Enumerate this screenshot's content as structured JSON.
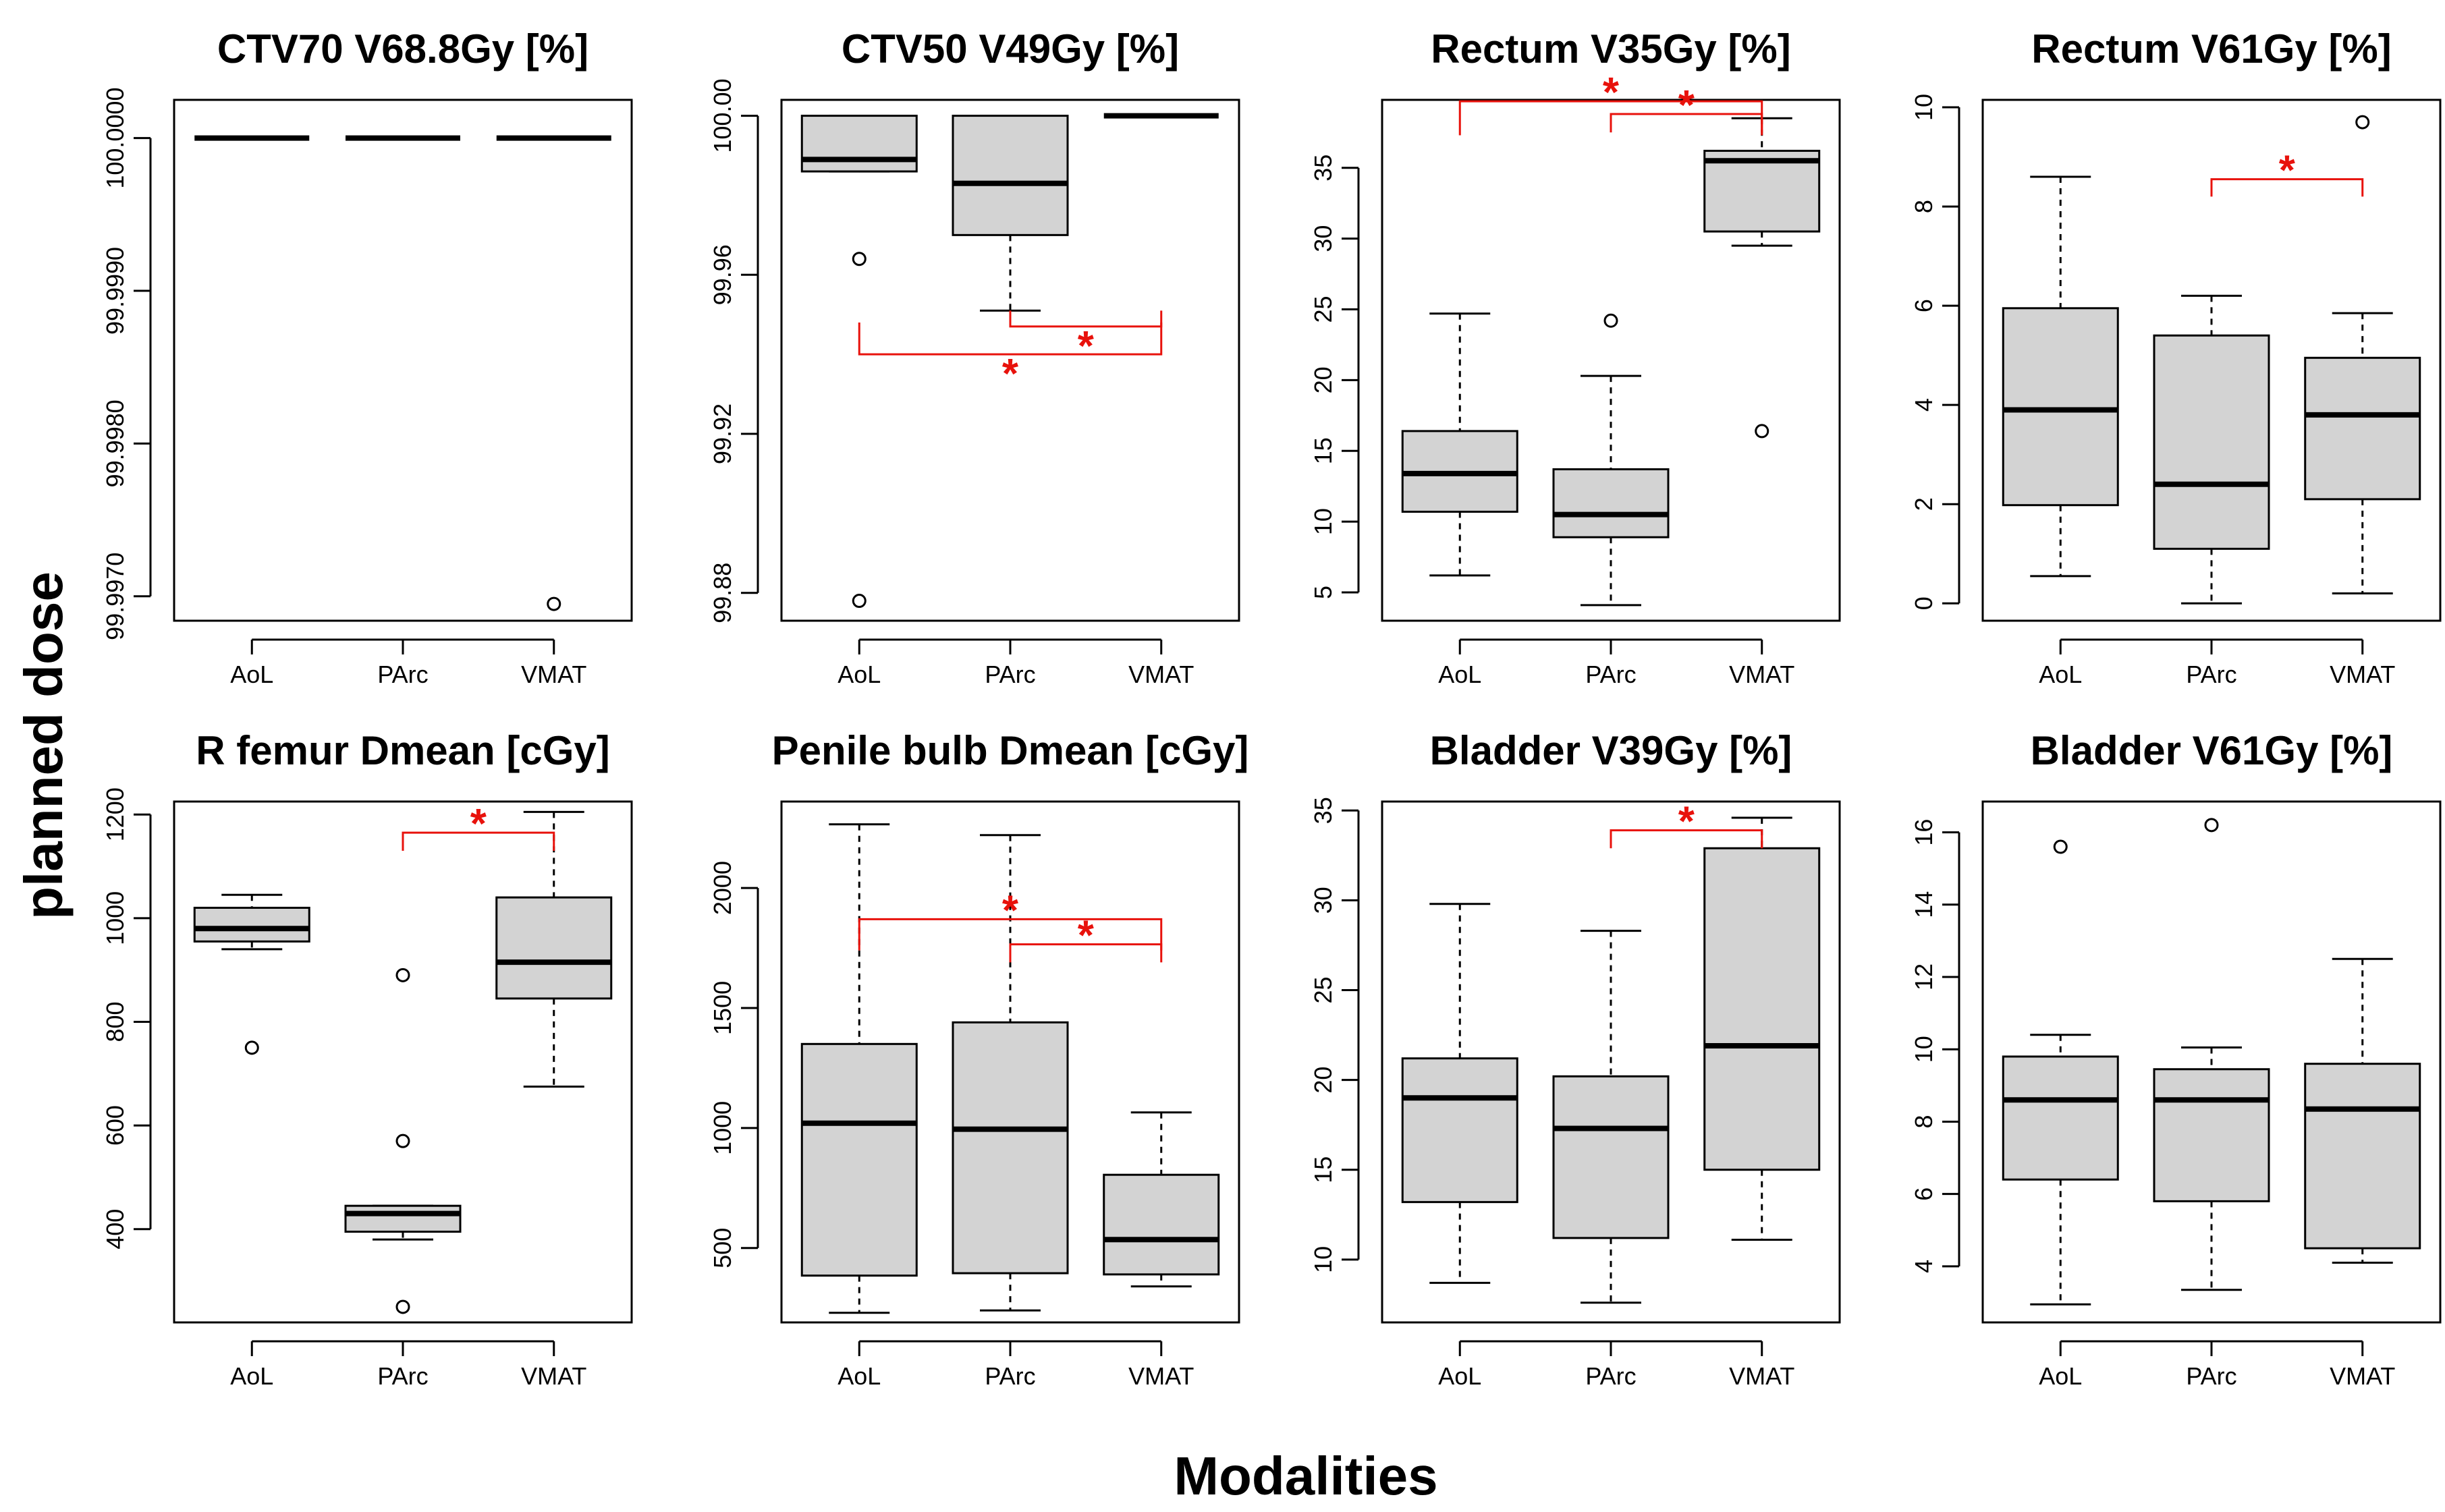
{
  "figure": {
    "ylabel": "planned dose",
    "xlabel": "Modalities"
  },
  "colors": {
    "box_fill": "#d3d3d3",
    "line": "#000000",
    "significance": "#e8120c"
  },
  "chart_data": [
    {
      "type": "boxplot",
      "title": "CTV70 V68.8Gy [%]",
      "categories": [
        "AoL",
        "PArc",
        "VMAT"
      ],
      "ylim": [
        99.99684,
        100.00025
      ],
      "yticks": [
        99.997,
        99.998,
        99.999,
        100.0
      ],
      "ytick_labels": [
        "99.9970",
        "99.9980",
        "99.9990",
        "100.0000"
      ],
      "boxes": [
        {
          "wlo": 100.0,
          "q1": 100.0,
          "med": 100.0,
          "q3": 100.0,
          "whi": 100.0,
          "out": []
        },
        {
          "wlo": 100.0,
          "q1": 100.0,
          "med": 100.0,
          "q3": 100.0,
          "whi": 100.0,
          "out": []
        },
        {
          "wlo": 100.0,
          "q1": 100.0,
          "med": 100.0,
          "q3": 100.0,
          "whi": 100.0,
          "out": [
            99.99695
          ]
        }
      ],
      "significance": []
    },
    {
      "type": "boxplot",
      "title": "CTV50 V49Gy [%]",
      "categories": [
        "AoL",
        "PArc",
        "VMAT"
      ],
      "ylim": [
        99.873,
        100.004
      ],
      "yticks": [
        99.88,
        99.92,
        99.96,
        100.0
      ],
      "ytick_labels": [
        "99.88",
        "99.92",
        "99.96",
        "100.00"
      ],
      "boxes": [
        {
          "wlo": 99.986,
          "q1": 99.986,
          "med": 99.989,
          "q3": 100.0,
          "whi": 100.0,
          "out": [
            99.964,
            99.878
          ]
        },
        {
          "wlo": 99.951,
          "q1": 99.97,
          "med": 99.983,
          "q3": 100.0,
          "whi": 100.0,
          "out": []
        },
        {
          "wlo": 100.0,
          "q1": 100.0,
          "med": 100.0,
          "q3": 100.0,
          "whi": 100.0,
          "out": []
        }
      ],
      "significance": [
        {
          "from": 1,
          "to": 2,
          "level": 99.947,
          "tip": 99.951,
          "label": "*"
        },
        {
          "from": 0,
          "to": 2,
          "level": 99.94,
          "tip": 99.948,
          "label": "*"
        }
      ]
    },
    {
      "type": "boxplot",
      "title": "Rectum V35Gy [%]",
      "categories": [
        "AoL",
        "PArc",
        "VMAT"
      ],
      "ylim": [
        3.0,
        39.8
      ],
      "yticks": [
        5,
        10,
        15,
        20,
        25,
        30,
        35
      ],
      "ytick_labels": [
        "5",
        "10",
        "15",
        "20",
        "25",
        "30",
        "35"
      ],
      "boxes": [
        {
          "wlo": 6.2,
          "q1": 10.7,
          "med": 13.4,
          "q3": 16.4,
          "whi": 24.7,
          "out": []
        },
        {
          "wlo": 4.1,
          "q1": 8.9,
          "med": 10.5,
          "q3": 13.7,
          "whi": 20.3,
          "out": [
            24.2
          ]
        },
        {
          "wlo": 29.5,
          "q1": 30.5,
          "med": 35.5,
          "q3": 36.2,
          "whi": 38.5,
          "out": [
            16.4
          ]
        }
      ],
      "significance": [
        {
          "from": 1,
          "to": 2,
          "level": 38.8,
          "tip": 37.5,
          "label": "*"
        },
        {
          "from": 0,
          "to": 2,
          "level": 39.7,
          "tip": 37.3,
          "label": "*"
        }
      ]
    },
    {
      "type": "boxplot",
      "title": "Rectum V61Gy [%]",
      "categories": [
        "AoL",
        "PArc",
        "VMAT"
      ],
      "ylim": [
        -0.35,
        10.15
      ],
      "yticks": [
        0,
        2,
        4,
        6,
        8,
        10
      ],
      "ytick_labels": [
        "0",
        "2",
        "4",
        "6",
        "8",
        "10"
      ],
      "boxes": [
        {
          "wlo": 0.55,
          "q1": 1.98,
          "med": 3.9,
          "q3": 5.95,
          "whi": 8.6,
          "out": []
        },
        {
          "wlo": 0.0,
          "q1": 1.1,
          "med": 2.4,
          "q3": 5.4,
          "whi": 6.2,
          "out": []
        },
        {
          "wlo": 0.2,
          "q1": 2.1,
          "med": 3.8,
          "q3": 4.95,
          "whi": 5.85,
          "out": [
            9.7
          ]
        }
      ],
      "significance": [
        {
          "from": 1,
          "to": 2,
          "level": 8.55,
          "tip": 8.2,
          "label": "*"
        }
      ]
    },
    {
      "type": "boxplot",
      "title": "R femur Dmean [cGy]",
      "categories": [
        "AoL",
        "PArc",
        "VMAT"
      ],
      "ylim": [
        220,
        1225
      ],
      "yticks": [
        400,
        600,
        800,
        1000,
        1200
      ],
      "ytick_labels": [
        "400",
        "600",
        "800",
        "1000",
        "1200"
      ],
      "boxes": [
        {
          "wlo": 940,
          "q1": 955,
          "med": 980,
          "q3": 1020,
          "whi": 1045,
          "out": [
            750
          ]
        },
        {
          "wlo": 380,
          "q1": 395,
          "med": 430,
          "q3": 445,
          "whi": 445,
          "out": [
            890,
            570,
            250
          ]
        },
        {
          "wlo": 675,
          "q1": 845,
          "med": 915,
          "q3": 1040,
          "whi": 1205,
          "out": []
        }
      ],
      "significance": [
        {
          "from": 1,
          "to": 2,
          "level": 1165,
          "tip": 1130,
          "label": "*"
        }
      ]
    },
    {
      "type": "boxplot",
      "title": "Penile bulb Dmean [cGy]",
      "categories": [
        "AoL",
        "PArc",
        "VMAT"
      ],
      "ylim": [
        190,
        2360
      ],
      "yticks": [
        500,
        1000,
        1500,
        2000
      ],
      "ytick_labels": [
        "500",
        "1000",
        "1500",
        "2000"
      ],
      "boxes": [
        {
          "wlo": 230,
          "q1": 385,
          "med": 1020,
          "q3": 1350,
          "whi": 2265,
          "out": []
        },
        {
          "wlo": 240,
          "q1": 395,
          "med": 995,
          "q3": 1440,
          "whi": 2220,
          "out": []
        },
        {
          "wlo": 340,
          "q1": 390,
          "med": 535,
          "q3": 805,
          "whi": 1065,
          "out": []
        }
      ],
      "significance": [
        {
          "from": 0,
          "to": 2,
          "level": 1870,
          "tip": 1740,
          "label": "*"
        },
        {
          "from": 1,
          "to": 2,
          "level": 1765,
          "tip": 1690,
          "label": "*"
        }
      ]
    },
    {
      "type": "boxplot",
      "title": "Bladder V39Gy [%]",
      "categories": [
        "AoL",
        "PArc",
        "VMAT"
      ],
      "ylim": [
        6.5,
        35.5
      ],
      "yticks": [
        10,
        15,
        20,
        25,
        30,
        35
      ],
      "ytick_labels": [
        "10",
        "15",
        "20",
        "25",
        "30",
        "35"
      ],
      "boxes": [
        {
          "wlo": 8.7,
          "q1": 13.2,
          "med": 19.0,
          "q3": 21.2,
          "whi": 29.8,
          "out": []
        },
        {
          "wlo": 7.6,
          "q1": 11.2,
          "med": 17.3,
          "q3": 20.2,
          "whi": 28.3,
          "out": []
        },
        {
          "wlo": 11.1,
          "q1": 15.0,
          "med": 21.9,
          "q3": 32.9,
          "whi": 34.6,
          "out": []
        }
      ],
      "significance": [
        {
          "from": 1,
          "to": 2,
          "level": 33.9,
          "tip": 32.9,
          "label": "*"
        }
      ]
    },
    {
      "type": "boxplot",
      "title": "Bladder V61Gy [%]",
      "categories": [
        "AoL",
        "PArc",
        "VMAT"
      ],
      "ylim": [
        2.45,
        16.85
      ],
      "yticks": [
        4,
        6,
        8,
        10,
        12,
        14,
        16
      ],
      "ytick_labels": [
        "4",
        "6",
        "8",
        "10",
        "12",
        "14",
        "16"
      ],
      "boxes": [
        {
          "wlo": 2.95,
          "q1": 6.4,
          "med": 8.6,
          "q3": 9.8,
          "whi": 10.4,
          "out": [
            15.6
          ]
        },
        {
          "wlo": 3.35,
          "q1": 5.8,
          "med": 8.6,
          "q3": 9.45,
          "whi": 10.05,
          "out": [
            16.2
          ]
        },
        {
          "wlo": 4.1,
          "q1": 4.5,
          "med": 8.35,
          "q3": 9.6,
          "whi": 12.5,
          "out": []
        }
      ],
      "significance": []
    }
  ]
}
